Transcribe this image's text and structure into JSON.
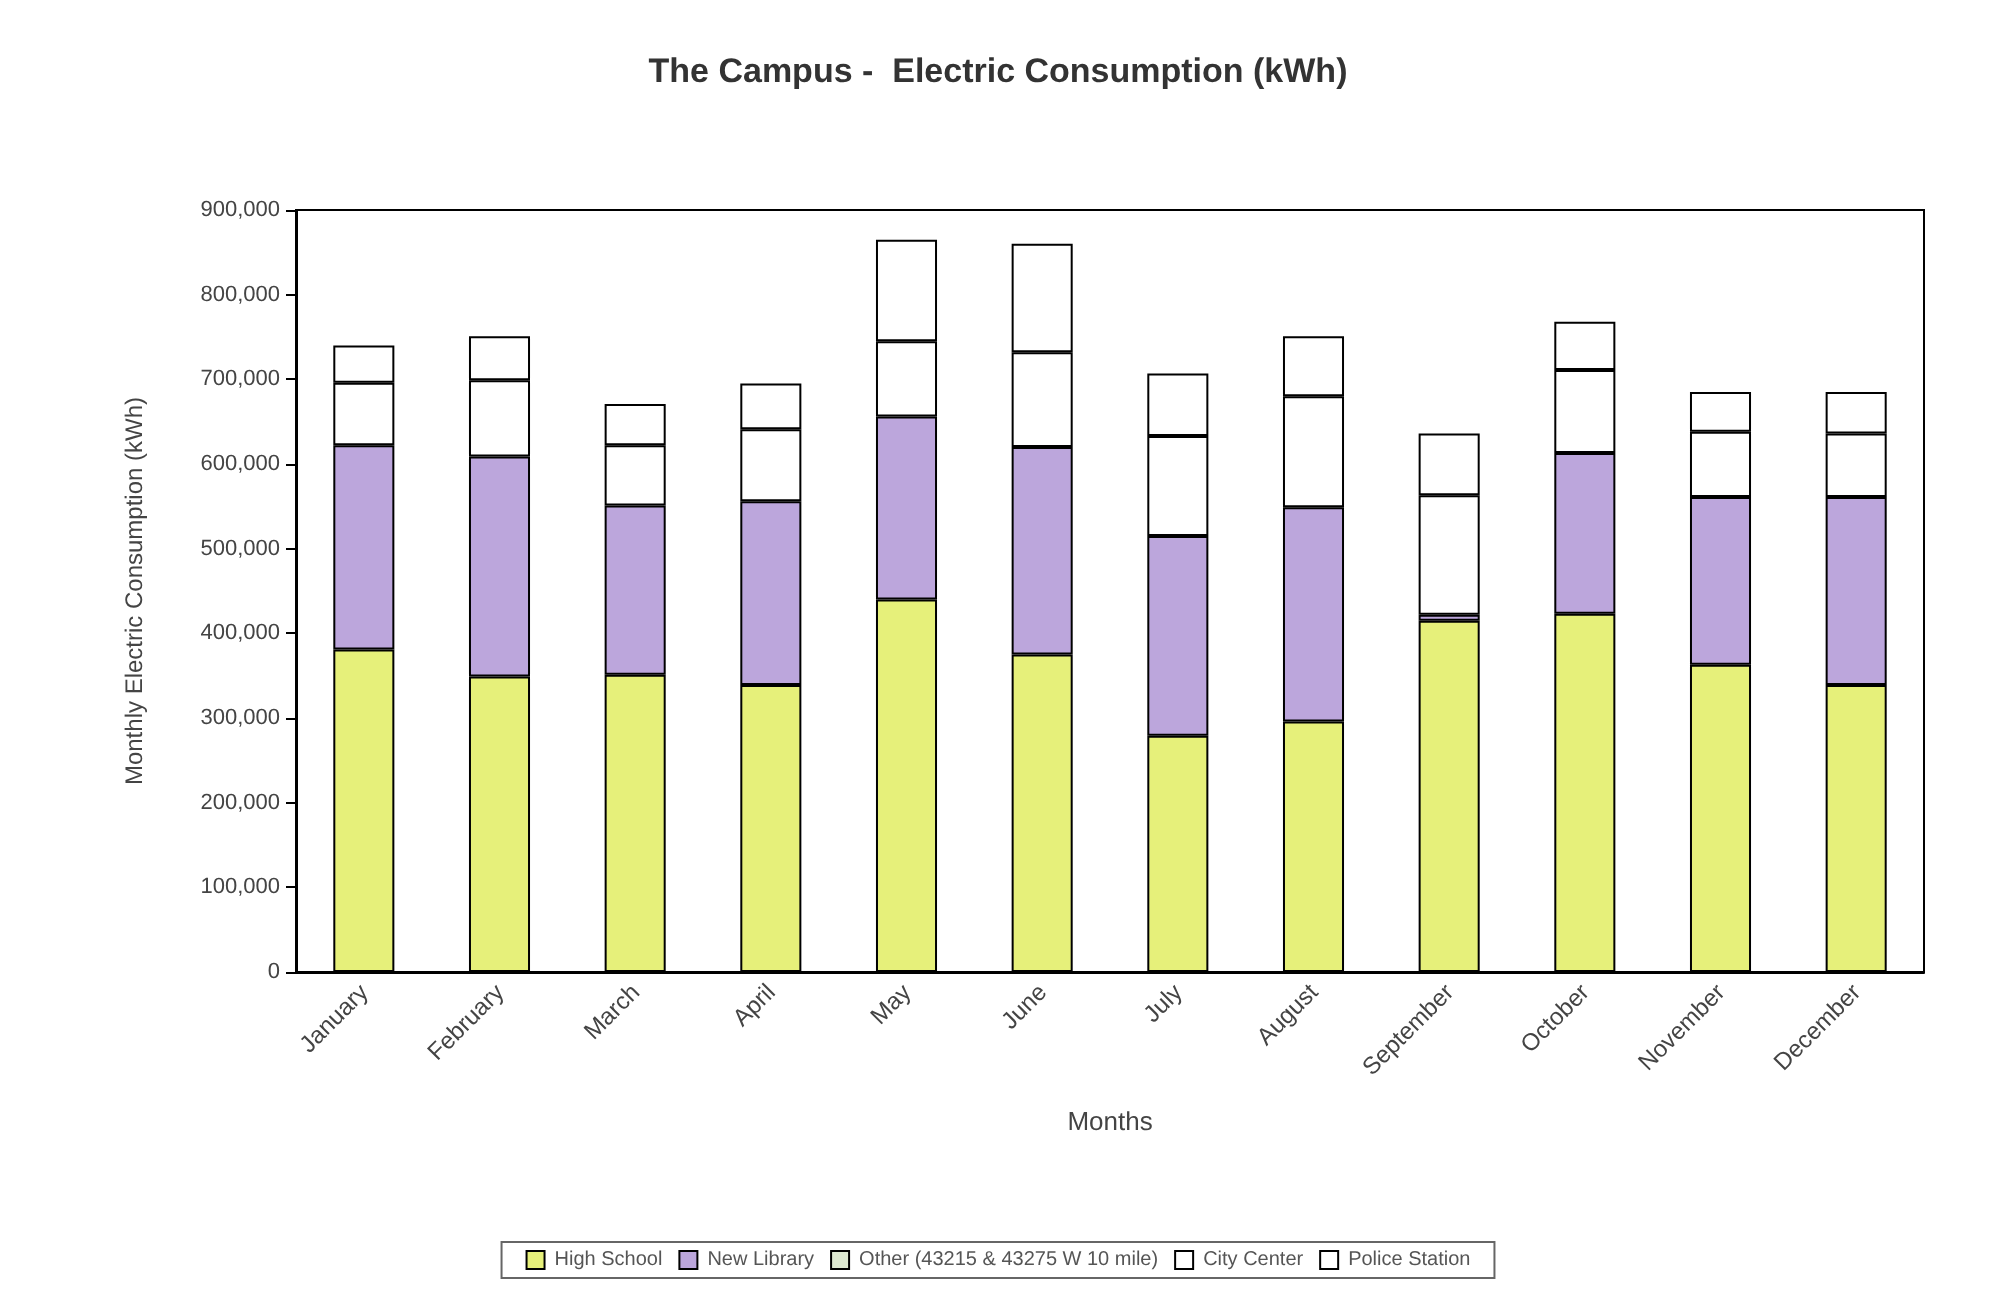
{
  "chart_data": {
    "type": "bar",
    "title": "The Campus -  Electric Consumption (kWh)",
    "xlabel": "Months",
    "ylabel": "Monthly Electric Consumption (kWh)",
    "categories": [
      "January",
      "February",
      "March",
      "April",
      "May",
      "June",
      "July",
      "August",
      "September",
      "October",
      "November",
      "December"
    ],
    "stacked": true,
    "grid": false,
    "legend": "bottom",
    "ylim": [
      0,
      900000
    ],
    "yticks": [
      0,
      {
        "value": 100000,
        "label": "100,000"
      },
      {
        "value": 200000,
        "label": "200,000"
      },
      {
        "value": 300000,
        "label": "300,000"
      },
      {
        "value": 400000,
        "label": "400,000"
      },
      {
        "value": 500000,
        "label": "500,000"
      },
      {
        "value": 600000,
        "label": "600,000"
      },
      {
        "value": 700000,
        "label": "700,000"
      },
      {
        "value": 800000,
        "label": "800,000"
      },
      {
        "value": 900000,
        "label": "900,000"
      }
    ],
    "series": [
      {
        "name": "High School",
        "color": "#e6f07a",
        "values": [
          381000,
          349000,
          351000,
          339000,
          440000,
          375000,
          279000,
          296000,
          415000,
          423000,
          363000,
          339000
        ]
      },
      {
        "name": "New Library",
        "color": "#bca6dc",
        "values": [
          241000,
          260000,
          200000,
          217000,
          216000,
          245000,
          236000,
          253000,
          7000,
          190000,
          198000,
          222000
        ]
      },
      {
        "name": "Other (43215 & 43275 W 10 mile)",
        "color": "#dde8d0",
        "values": [
          null,
          null,
          null,
          null,
          null,
          null,
          null,
          null,
          null,
          null,
          null,
          null
        ]
      },
      {
        "name": "City Center",
        "color": "#ffffff",
        "values": [
          74000,
          90000,
          71000,
          85000,
          89000,
          112000,
          118000,
          131000,
          141000,
          98000,
          77000,
          75000
        ]
      },
      {
        "name": "Police Station",
        "color": "#ffffff",
        "values": [
          44000,
          52000,
          49000,
          54000,
          120000,
          128000,
          74000,
          71000,
          73000,
          57000,
          47000,
          49000
        ]
      }
    ]
  }
}
